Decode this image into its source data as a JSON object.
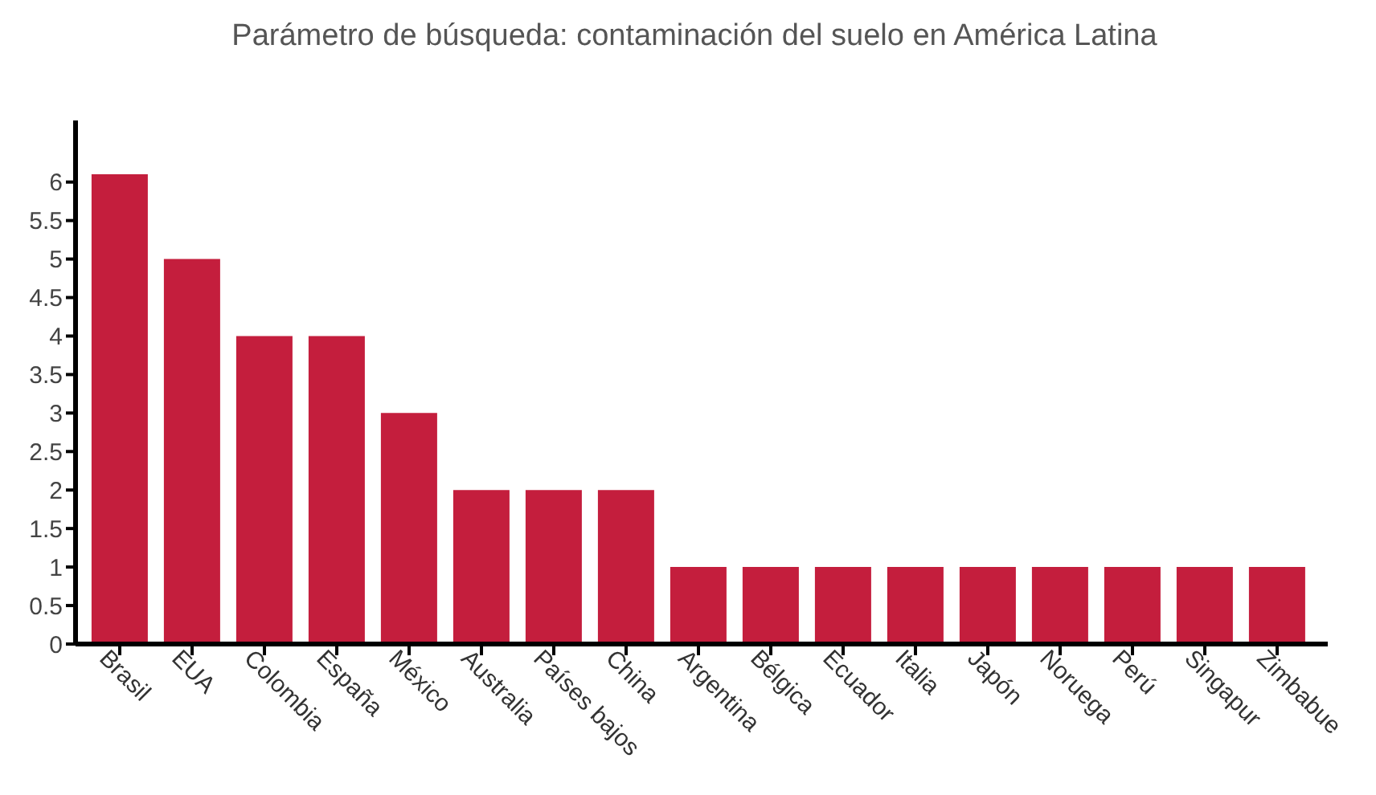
{
  "chart_data": {
    "type": "bar",
    "title": "Parámetro de búsqueda: contaminación del suelo en América Latina",
    "categories": [
      "Brasil",
      "EUA",
      "Colombia",
      "España",
      "México",
      "Australia",
      "Países bajos",
      "China",
      "Argentina",
      "Bélgica",
      "Ecuador",
      "Italia",
      "Japón",
      "Noruega",
      "Perú",
      "Singapur",
      "Zimbabue"
    ],
    "values": [
      6.1,
      5,
      4,
      4,
      3,
      2,
      2,
      2,
      1,
      1,
      1,
      1,
      1,
      1,
      1,
      1,
      1
    ],
    "color": "#c41e3d",
    "ylim": [
      0,
      6.8
    ],
    "yticks": [
      0,
      0.5,
      1,
      1.5,
      2,
      2.5,
      3,
      3.5,
      4,
      4.5,
      5,
      5.5,
      6
    ]
  }
}
